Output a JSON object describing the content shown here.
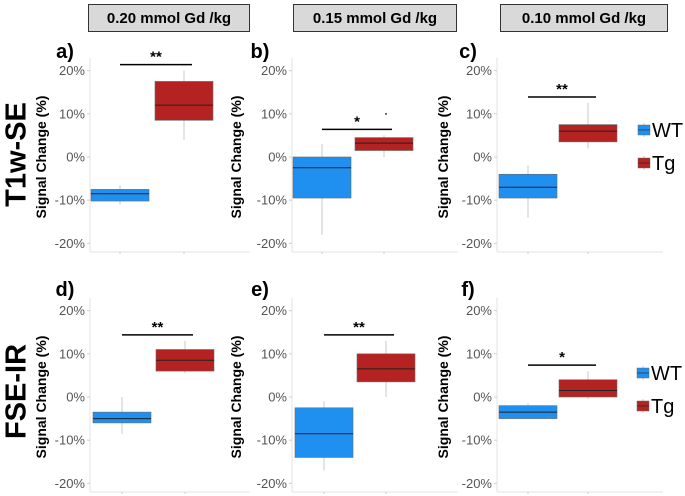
{
  "column_headers": [
    "0.20 mmol Gd /kg",
    "0.15 mmol Gd /kg",
    "0.10 mmol Gd /kg"
  ],
  "row_labels": [
    "T1w-SE",
    "FSE-IR"
  ],
  "colors": {
    "WT": "#1f8ff0",
    "Tg": "#b42222",
    "header_bg": "#d9d9d9"
  },
  "legend": {
    "entries": [
      "WT",
      "Tg"
    ]
  },
  "chart_data": [
    {
      "type": "box",
      "panel_label": "a)",
      "ylabel": "Signal Change (%)",
      "ylim": [
        -22,
        22
      ],
      "ticks": [
        "-20%",
        "-10%",
        "0%",
        "10%",
        "20%"
      ],
      "significance": "**",
      "series": [
        {
          "name": "WT",
          "min": -11,
          "q1": -10.2,
          "median": -8.5,
          "q3": -7.5,
          "max": -6.5,
          "outliers": []
        },
        {
          "name": "Tg",
          "min": 4,
          "q1": 8.5,
          "median": 12,
          "q3": 17.5,
          "max": 20,
          "outliers": []
        }
      ]
    },
    {
      "type": "box",
      "panel_label": "b)",
      "ylabel": "Signal Change (%)",
      "ylim": [
        -22,
        22
      ],
      "ticks": [
        "-20%",
        "-10%",
        "0%",
        "10%",
        "20%"
      ],
      "significance": "*",
      "series": [
        {
          "name": "WT",
          "min": -18,
          "q1": -9.5,
          "median": -2.5,
          "q3": 0,
          "max": 3,
          "outliers": []
        },
        {
          "name": "Tg",
          "min": 0,
          "q1": 1.5,
          "median": 3.2,
          "q3": 4.5,
          "max": 5,
          "outliers": [
            10
          ]
        }
      ]
    },
    {
      "type": "box",
      "panel_label": "c)",
      "ylabel": "Signal Change (%)",
      "ylim": [
        -22,
        22
      ],
      "ticks": [
        "-20%",
        "-10%",
        "0%",
        "10%",
        "20%"
      ],
      "significance": "**",
      "series": [
        {
          "name": "WT",
          "min": -14,
          "q1": -9.5,
          "median": -7,
          "q3": -4,
          "max": -2,
          "outliers": []
        },
        {
          "name": "Tg",
          "min": 2,
          "q1": 3.5,
          "median": 6,
          "q3": 7.5,
          "max": 12.5,
          "outliers": []
        }
      ]
    },
    {
      "type": "box",
      "panel_label": "d)",
      "ylabel": "Signal Change (%)",
      "ylim": [
        -22,
        22
      ],
      "ticks": [
        "-20%",
        "-10%",
        "0%",
        "10%",
        "20%"
      ],
      "significance": "**",
      "series": [
        {
          "name": "WT",
          "min": -8.5,
          "q1": -6,
          "median": -5,
          "q3": -3.5,
          "max": 0,
          "outliers": []
        },
        {
          "name": "Tg",
          "min": 5.5,
          "q1": 6,
          "median": 8.5,
          "q3": 11,
          "max": 13,
          "outliers": []
        }
      ]
    },
    {
      "type": "box",
      "panel_label": "e)",
      "ylabel": "Signal Change (%)",
      "ylim": [
        -22,
        22
      ],
      "ticks": [
        "-20%",
        "-10%",
        "0%",
        "10%",
        "20%"
      ],
      "significance": "**",
      "series": [
        {
          "name": "WT",
          "min": -17,
          "q1": -14,
          "median": -8.5,
          "q3": -2.5,
          "max": -1,
          "outliers": []
        },
        {
          "name": "Tg",
          "min": 0,
          "q1": 3.5,
          "median": 6.5,
          "q3": 10,
          "max": 13,
          "outliers": []
        }
      ]
    },
    {
      "type": "box",
      "panel_label": "f)",
      "ylabel": "Signal Change (%)",
      "ylim": [
        -22,
        22
      ],
      "ticks": [
        "-20%",
        "-10%",
        "0%",
        "10%",
        "20%"
      ],
      "significance": "*",
      "series": [
        {
          "name": "WT",
          "min": -5,
          "q1": -5,
          "median": -3.5,
          "q3": -2,
          "max": -1.5,
          "outliers": []
        },
        {
          "name": "Tg",
          "min": -0.5,
          "q1": 0,
          "median": 1.5,
          "q3": 4,
          "max": 6,
          "outliers": []
        }
      ]
    }
  ]
}
